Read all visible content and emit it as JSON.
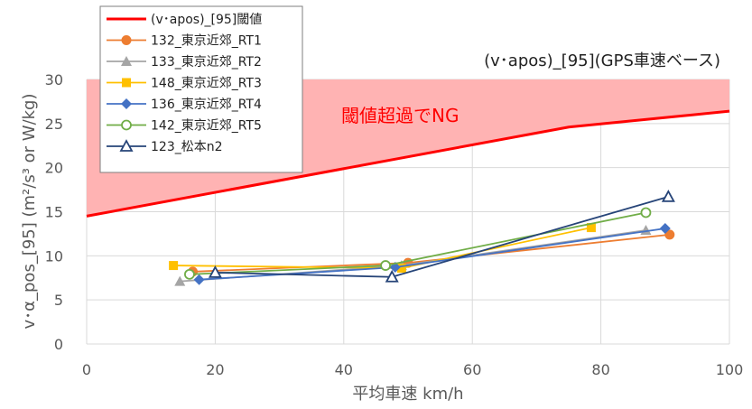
{
  "chart_data": {
    "type": "line",
    "subtitle": "(v･apos)_[95](GPS車速ベース)",
    "xlabel": "平均車速 km/h",
    "ylabel": "v･α_pos_[95]  (m²/s³ or W/kg)",
    "annotation": "閾値超過でNG",
    "xlim": [
      0,
      100
    ],
    "ylim": [
      0,
      30
    ],
    "x_ticks": [
      "0",
      "20",
      "40",
      "60",
      "80",
      "100"
    ],
    "y_ticks": [
      "0",
      "5",
      "10",
      "15",
      "20",
      "25",
      "30"
    ],
    "grid": true,
    "legend_position": "top-left",
    "threshold": {
      "name": "(v･apos)_[95]閾値",
      "color": "#ff0000",
      "fill": "#ffb3b3",
      "points": [
        [
          0,
          14.5
        ],
        [
          75,
          24.6
        ],
        [
          100,
          26.4
        ]
      ]
    },
    "series": [
      {
        "name": "132_東京近郊_RT1",
        "color": "#ed7d31",
        "marker": "circle",
        "points": [
          [
            16.5,
            8.2
          ],
          [
            50,
            9.2
          ],
          [
            90.7,
            12.4
          ]
        ]
      },
      {
        "name": "133_東京近郊_RT2",
        "color": "#a5a5a5",
        "marker": "triangle",
        "points": [
          [
            14.5,
            7.1
          ],
          [
            49,
            8.9
          ],
          [
            87,
            12.9
          ]
        ]
      },
      {
        "name": "148_東京近郊_RT3",
        "color": "#ffc000",
        "marker": "square",
        "points": [
          [
            13.5,
            8.9
          ],
          [
            49,
            8.6
          ],
          [
            78.5,
            13.2
          ]
        ]
      },
      {
        "name": "136_東京近郊_RT4",
        "color": "#4472c4",
        "marker": "diamond",
        "points": [
          [
            17.5,
            7.3
          ],
          [
            48,
            8.7
          ],
          [
            90,
            13.1
          ]
        ]
      },
      {
        "name": "142_東京近郊_RT5",
        "color": "#70ad47",
        "marker": "circle-open",
        "points": [
          [
            16,
            7.9
          ],
          [
            46.5,
            8.9
          ],
          [
            87,
            14.9
          ]
        ]
      },
      {
        "name": "123_松本n2",
        "color": "#264478",
        "marker": "triangle-open",
        "points": [
          [
            20,
            8.1
          ],
          [
            47.5,
            7.6
          ],
          [
            90.5,
            16.7
          ]
        ]
      }
    ]
  }
}
